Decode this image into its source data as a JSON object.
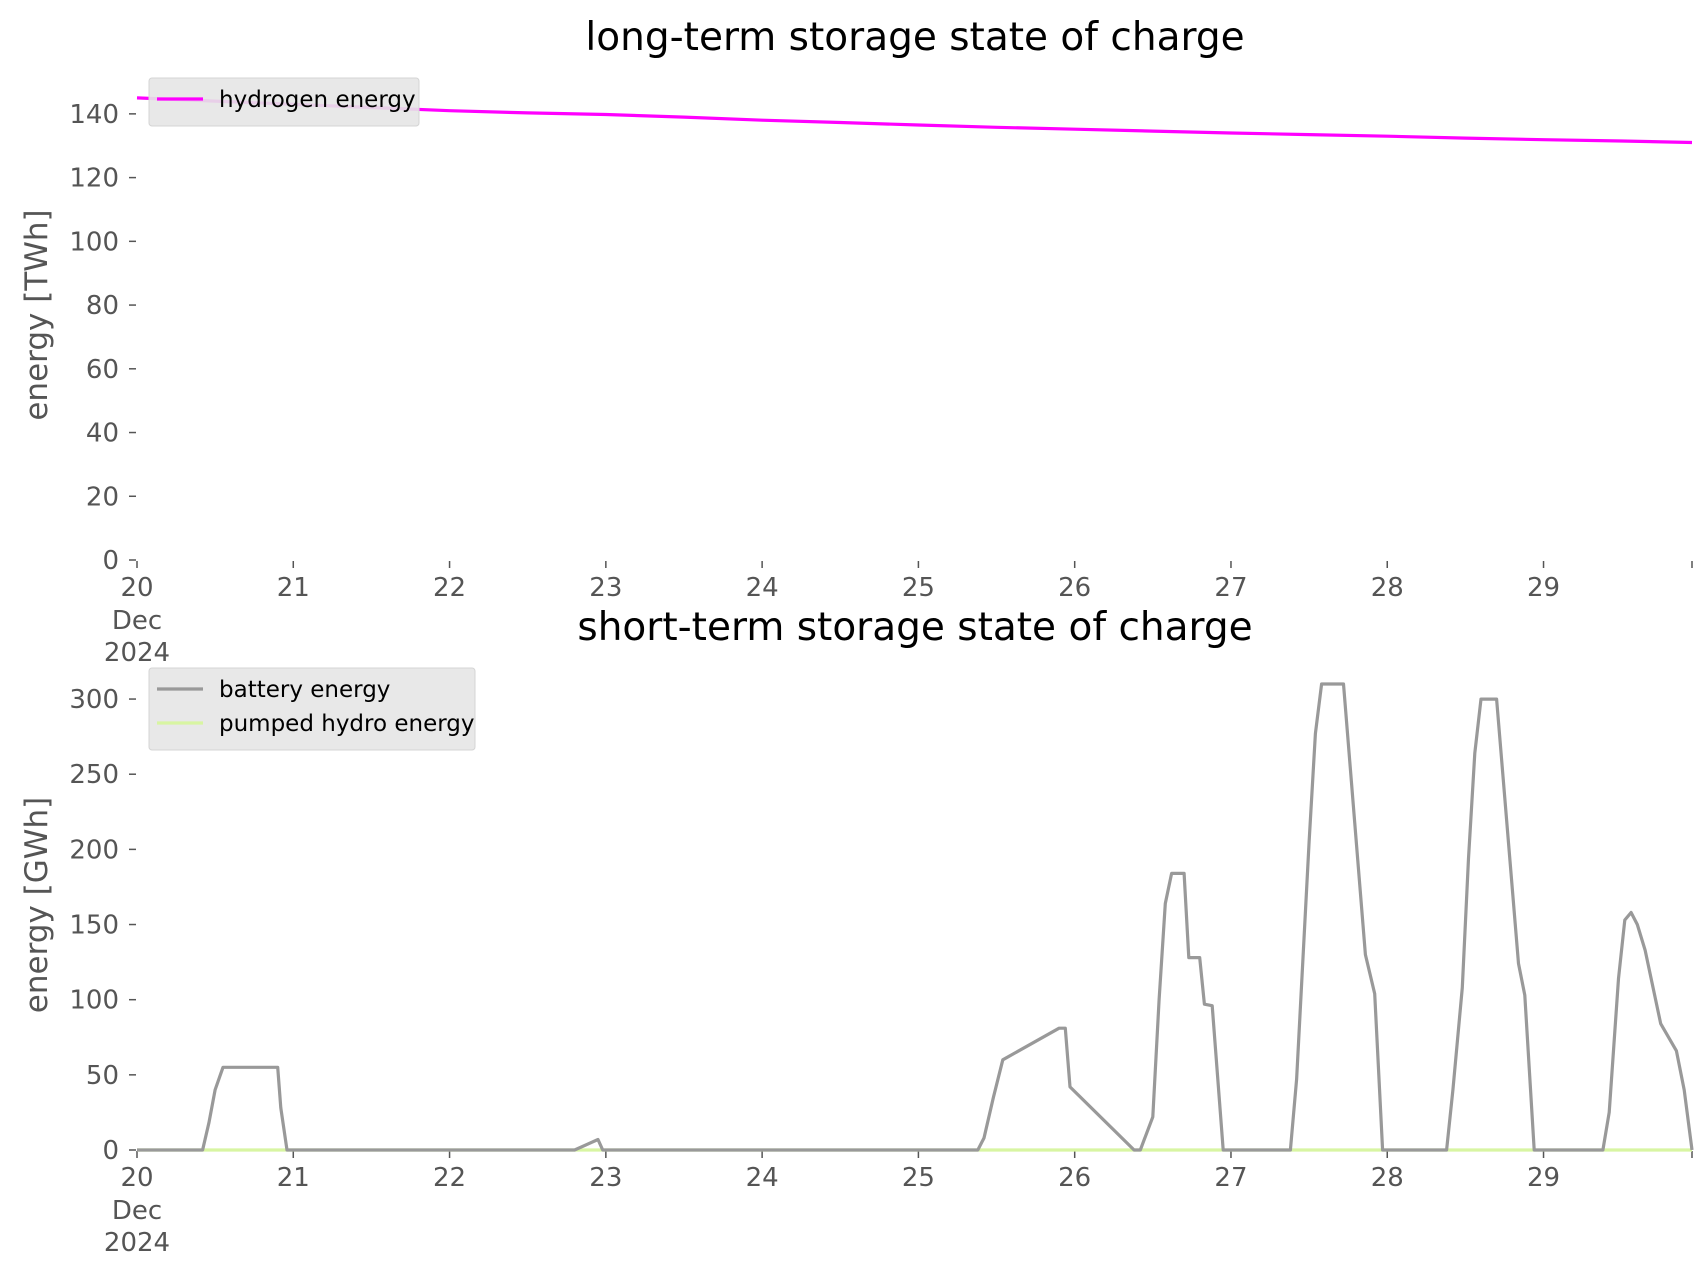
{
  "chart_data": [
    {
      "type": "line",
      "title": "long-term storage state of charge",
      "ylabel": "energy [TWh]",
      "xlabel": "",
      "ylim": [
        0,
        150
      ],
      "yticks": [
        0,
        20,
        40,
        60,
        80,
        100,
        120,
        140
      ],
      "xlim": [
        20,
        29.95
      ],
      "xticks": [
        {
          "value": 20,
          "label": "20"
        },
        {
          "value": 21,
          "label": "21"
        },
        {
          "value": 22,
          "label": "22"
        },
        {
          "value": 23,
          "label": "23"
        },
        {
          "value": 24,
          "label": "24"
        },
        {
          "value": 25,
          "label": "25"
        },
        {
          "value": 26,
          "label": "26"
        },
        {
          "value": 27,
          "label": "27"
        },
        {
          "value": 28,
          "label": "28"
        },
        {
          "value": 29,
          "label": "29"
        }
      ],
      "xtick_sublabel": [
        "Dec",
        "2024"
      ],
      "legend_position": "upper-left",
      "grid": false,
      "series": [
        {
          "name": "hydrogen energy",
          "color": "#ff00ff",
          "x": [
            20,
            20.5,
            21,
            21.5,
            22,
            22.5,
            23,
            23.5,
            24,
            24.5,
            25,
            25.5,
            26,
            26.5,
            27,
            27.5,
            28,
            28.5,
            29,
            29.5,
            29.95
          ],
          "y": [
            145,
            144,
            143,
            142,
            141,
            140.3,
            139.8,
            139,
            138,
            137.3,
            136.5,
            135.8,
            135.2,
            134.6,
            134,
            133.5,
            133,
            132.4,
            131.9,
            131.5,
            131
          ]
        }
      ]
    },
    {
      "type": "line",
      "title": "short-term storage state of charge",
      "ylabel": "energy [GWh]",
      "xlabel": "",
      "ylim": [
        0,
        318
      ],
      "yticks": [
        0,
        50,
        100,
        150,
        200,
        250,
        300
      ],
      "xlim": [
        20,
        29.95
      ],
      "xticks": [
        {
          "value": 20,
          "label": "20"
        },
        {
          "value": 21,
          "label": "21"
        },
        {
          "value": 22,
          "label": "22"
        },
        {
          "value": 23,
          "label": "23"
        },
        {
          "value": 24,
          "label": "24"
        },
        {
          "value": 25,
          "label": "25"
        },
        {
          "value": 26,
          "label": "26"
        },
        {
          "value": 27,
          "label": "27"
        },
        {
          "value": 28,
          "label": "28"
        },
        {
          "value": 29,
          "label": "29"
        }
      ],
      "xtick_sublabel": [
        "Dec",
        "2024"
      ],
      "legend_position": "upper-left",
      "grid": false,
      "series": [
        {
          "name": "battery energy",
          "color": "#999999",
          "x": [
            20,
            20.42,
            20.46,
            20.5,
            20.55,
            20.9,
            20.92,
            20.96,
            22.8,
            22.95,
            22.98,
            25.38,
            25.42,
            25.48,
            25.54,
            25.9,
            25.94,
            25.97,
            26.38,
            26.42,
            26.5,
            26.54,
            26.58,
            26.62,
            26.7,
            26.73,
            26.8,
            26.83,
            26.88,
            26.95,
            27.38,
            27.42,
            27.5,
            27.54,
            27.58,
            27.72,
            27.86,
            27.92,
            27.97,
            28.38,
            28.42,
            28.48,
            28.52,
            28.56,
            28.6,
            28.7,
            28.84,
            28.88,
            28.94,
            29.38,
            29.42,
            29.48,
            29.52,
            29.56,
            29.6,
            29.65,
            29.75,
            29.85,
            29.9,
            29.95
          ],
          "y": [
            0,
            0,
            18,
            40,
            55,
            55,
            28,
            0,
            0,
            7,
            0,
            0,
            8,
            35,
            60,
            81,
            81,
            42,
            0,
            0,
            22,
            100,
            164,
            184,
            184,
            128,
            128,
            97,
            96,
            0,
            0,
            47,
            205,
            277,
            310,
            310,
            130,
            104,
            0,
            0,
            40,
            108,
            194,
            264,
            300,
            300,
            124,
            103,
            0,
            0,
            25,
            114,
            153,
            158,
            150,
            133,
            84,
            66,
            40,
            0
          ]
        },
        {
          "name": "pumped hydro energy",
          "color": "#d8f5a2",
          "x": [
            20,
            29.95
          ],
          "y": [
            0,
            0
          ]
        }
      ]
    }
  ]
}
